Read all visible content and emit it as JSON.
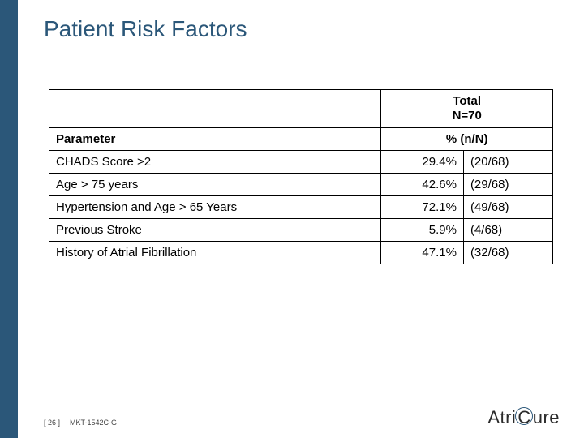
{
  "title": "Patient Risk Factors",
  "table": {
    "total_label": "Total",
    "total_n": "N=70",
    "param_header": "Parameter",
    "value_header": "% (n/N)",
    "rows": [
      {
        "param": "CHADS Score >2",
        "pct": "29.4%",
        "nn": "(20/68)"
      },
      {
        "param": "Age > 75 years",
        "pct": "42.6%",
        "nn": "(29/68)"
      },
      {
        "param": "Hypertension and Age > 65 Years",
        "pct": "72.1%",
        "nn": "(49/68)"
      },
      {
        "param": "Previous Stroke",
        "pct": "5.9%",
        "nn": "(4/68)"
      },
      {
        "param": "History of Atrial Fibrillation",
        "pct": "47.1%",
        "nn": "(32/68)"
      }
    ]
  },
  "footer": {
    "page": "[ 26 ]",
    "code": "MKT-1542C-G"
  },
  "logo": {
    "part1": "Atri",
    "part2": "C",
    "part3": "ure"
  },
  "colors": {
    "accent": "#2b5779",
    "text": "#000000",
    "border": "#000000",
    "bg": "#ffffff"
  }
}
